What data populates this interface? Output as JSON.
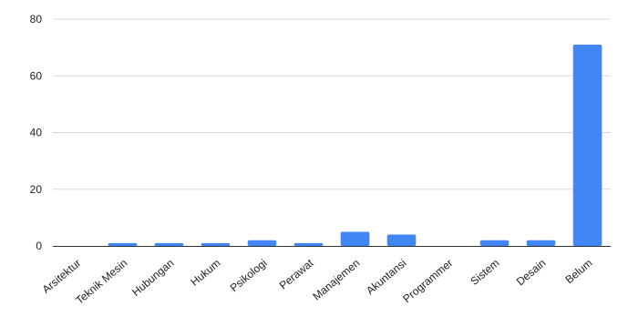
{
  "chart_data": {
    "type": "bar",
    "title": "",
    "xlabel": "",
    "ylabel": "",
    "categories": [
      "Arsitektur",
      "Teknik Mesin",
      "Hubungan",
      "Hukum",
      "Psikologi",
      "Perawat",
      "Manajemen",
      "Akuntansi",
      "Programmer",
      "Sistem",
      "Desain",
      "Belum"
    ],
    "values": [
      0,
      1,
      1,
      1,
      2,
      1,
      5,
      4,
      0,
      2,
      2,
      71
    ],
    "ylim": [
      0,
      80
    ],
    "yticks": [
      "0",
      "20",
      "40",
      "60",
      "80"
    ],
    "grid": true,
    "legend": "none",
    "colors": {
      "bar": "#4285f4",
      "grid": "#d9d9d9",
      "axis": "#333333",
      "text": "#222222"
    }
  }
}
